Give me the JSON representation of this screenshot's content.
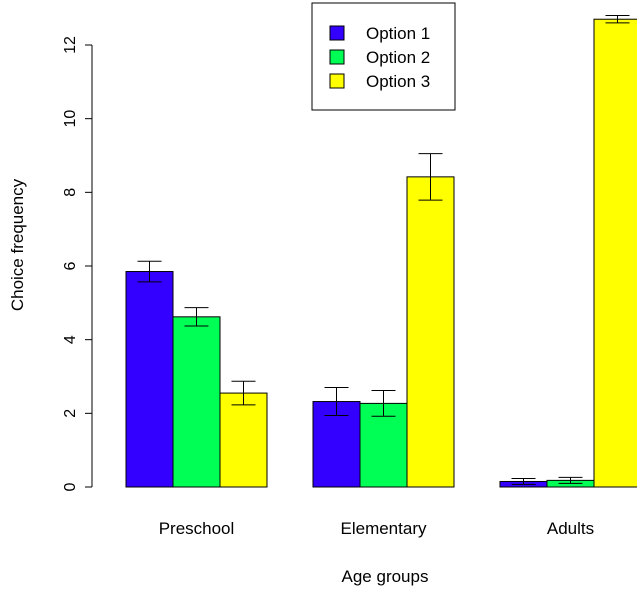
{
  "chart_data": {
    "type": "bar",
    "title": "",
    "xlabel": "Age groups",
    "ylabel": "Choice frequency",
    "ylim": [
      0,
      12
    ],
    "yticks": [
      0,
      2,
      4,
      6,
      8,
      10,
      12
    ],
    "categories": [
      "Preschool",
      "Elementary",
      "Adults"
    ],
    "series": [
      {
        "name": "Option 1",
        "color": "#3300ff",
        "values": [
          5.85,
          2.32,
          0.15
        ],
        "error": [
          0.28,
          0.38,
          0.08
        ]
      },
      {
        "name": "Option 2",
        "color": "#00ff55",
        "values": [
          4.62,
          2.27,
          0.18
        ],
        "error": [
          0.25,
          0.35,
          0.08
        ]
      },
      {
        "name": "Option 3",
        "color": "#ffff00",
        "values": [
          2.55,
          8.42,
          12.7
        ],
        "error": [
          0.32,
          0.63,
          0.1
        ]
      }
    ],
    "legend": {
      "position": "top-center",
      "entries": [
        "Option 1",
        "Option 2",
        "Option 3"
      ]
    },
    "grid": false
  }
}
